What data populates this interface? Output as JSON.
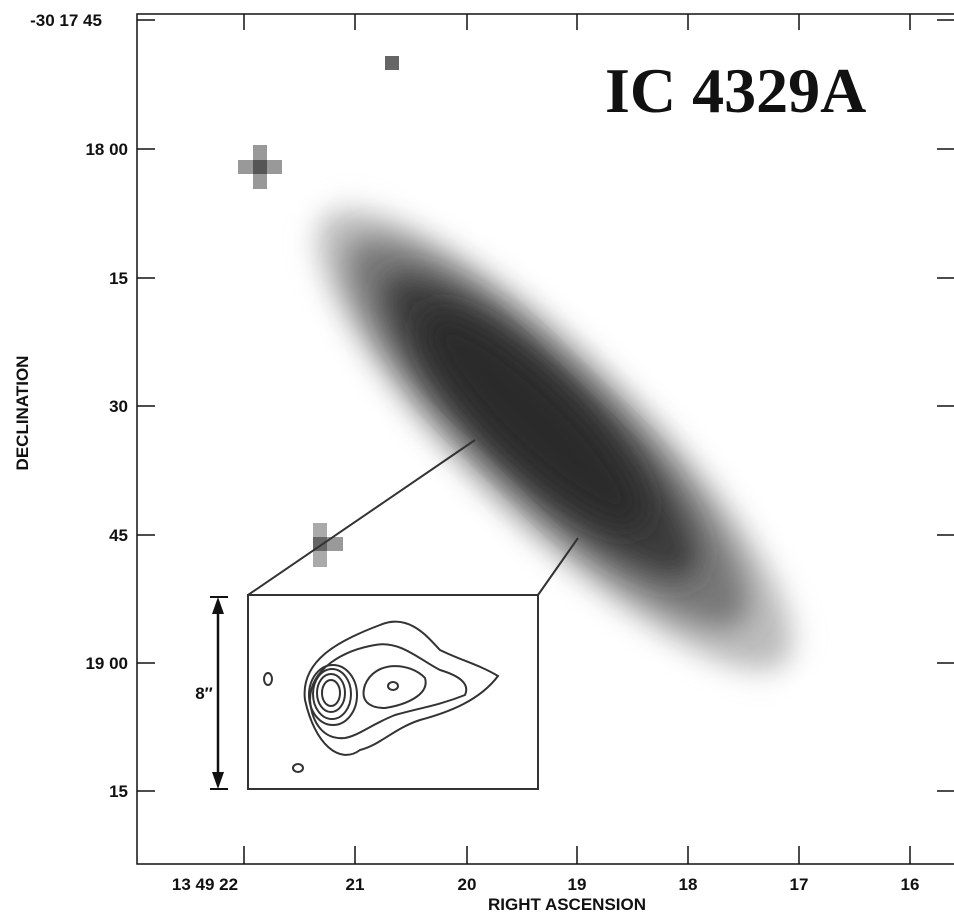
{
  "title": "IC 4329A",
  "axes": {
    "x_label": "RIGHT ASCENSION",
    "y_label": "DECLINATION",
    "x_ticks": [
      "13 49 22",
      "21",
      "20",
      "19",
      "18",
      "17",
      "16"
    ],
    "y_ticks": [
      "-30 17 45",
      "18 00",
      "15",
      "30",
      "45",
      "19 00",
      "15"
    ]
  },
  "inset": {
    "scale_label": "8″"
  }
}
